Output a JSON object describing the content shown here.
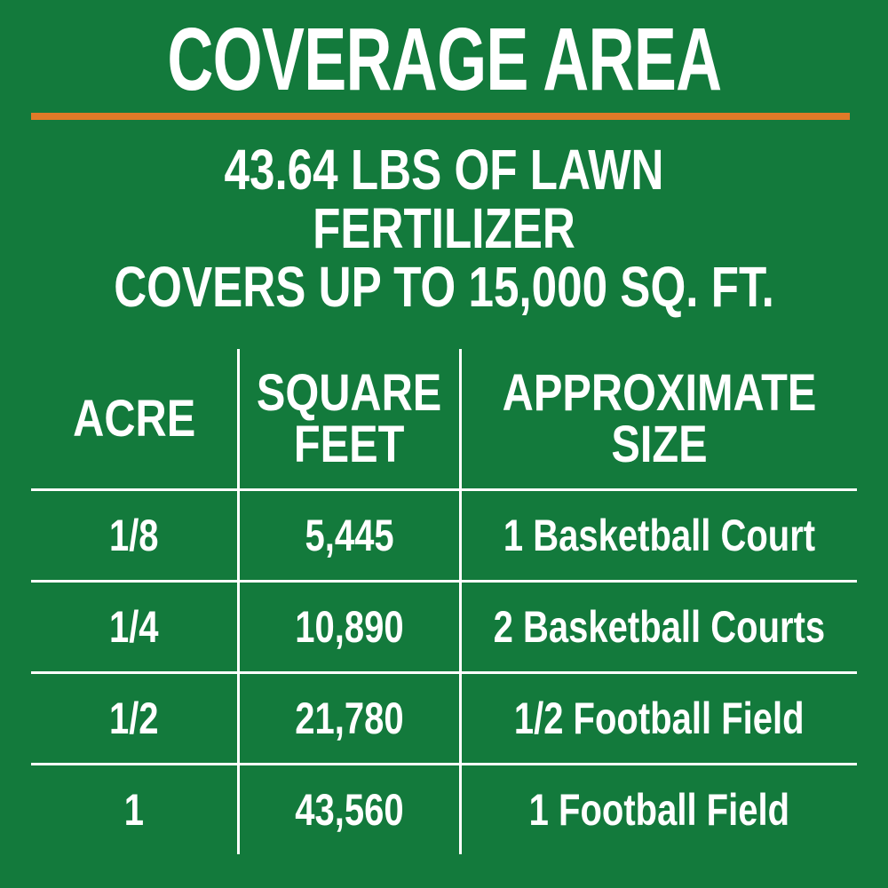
{
  "page": {
    "title": "COVERAGE AREA",
    "subtitle": "43.64 LBS OF LAWN FERTILIZER\nCOVERS UP TO 15,000 SQ. FT."
  },
  "colors": {
    "background_green": "#137A3C",
    "accent_orange": "#E07A28",
    "text_white": "#FFFFFF",
    "table_lines": "#FFFFFF"
  },
  "table": {
    "headers": {
      "acre": "ACRE",
      "square_feet": "SQUARE\nFEET",
      "approximate_size": "APPROXIMATE\nSIZE"
    },
    "rows": [
      {
        "acre": "1/8",
        "square_feet": "5,445",
        "approximate_size": "1 Basketball Court"
      },
      {
        "acre": "1/4",
        "square_feet": "10,890",
        "approximate_size": "2 Basketball Courts"
      },
      {
        "acre": "1/2",
        "square_feet": "21,780",
        "approximate_size": "1/2 Football Field"
      },
      {
        "acre": "1",
        "square_feet": "43,560",
        "approximate_size": "1 Football Field"
      }
    ]
  }
}
